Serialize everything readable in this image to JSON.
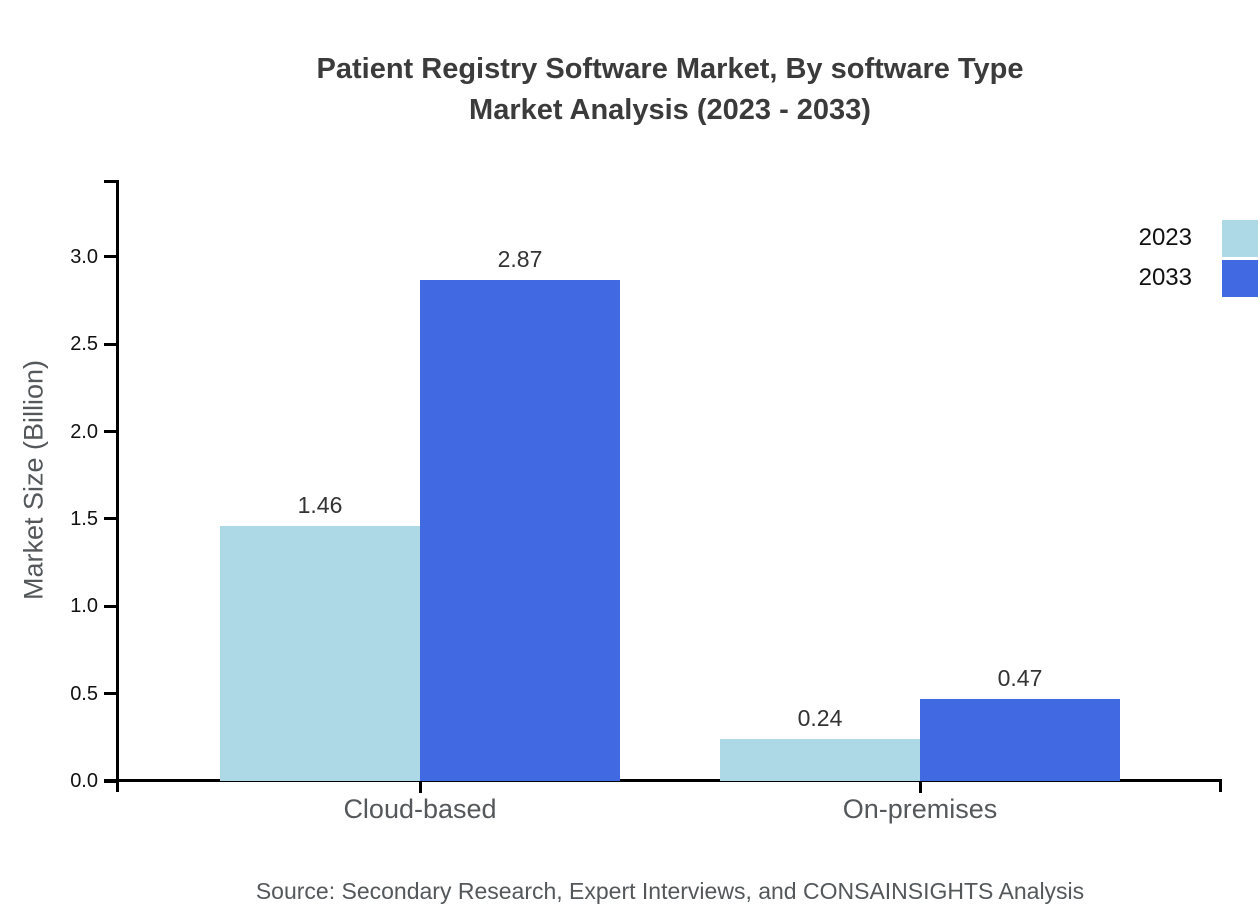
{
  "title": {
    "line1": "Patient Registry Software Market, By software Type",
    "line2": "Market Analysis (2023 - 2033)"
  },
  "chart_data": {
    "type": "bar",
    "categories": [
      "Cloud-based",
      "On-premises"
    ],
    "series": [
      {
        "name": "2023",
        "color": "#ADD8E6",
        "values": [
          1.46,
          0.24
        ],
        "labels": [
          "1.46",
          "0.24"
        ]
      },
      {
        "name": "2033",
        "color": "#4169E1",
        "values": [
          2.87,
          0.47
        ],
        "labels": [
          "2.87",
          "0.47"
        ]
      }
    ],
    "ylabel": "Market Size (Billion)",
    "yticks": [
      "0.0",
      "0.5",
      "1.0",
      "1.5",
      "2.0",
      "2.5",
      "3.0"
    ],
    "ylim": [
      0,
      3.45
    ],
    "grid": false,
    "legend_position": "top-right",
    "value_labels_shown": true
  },
  "legend": {
    "items": [
      {
        "label": "2023",
        "color": "#ADD8E6"
      },
      {
        "label": "2033",
        "color": "#4169E1"
      }
    ]
  },
  "source": "Source: Secondary Research, Expert Interviews, and CONSAINSIGHTS Analysis"
}
